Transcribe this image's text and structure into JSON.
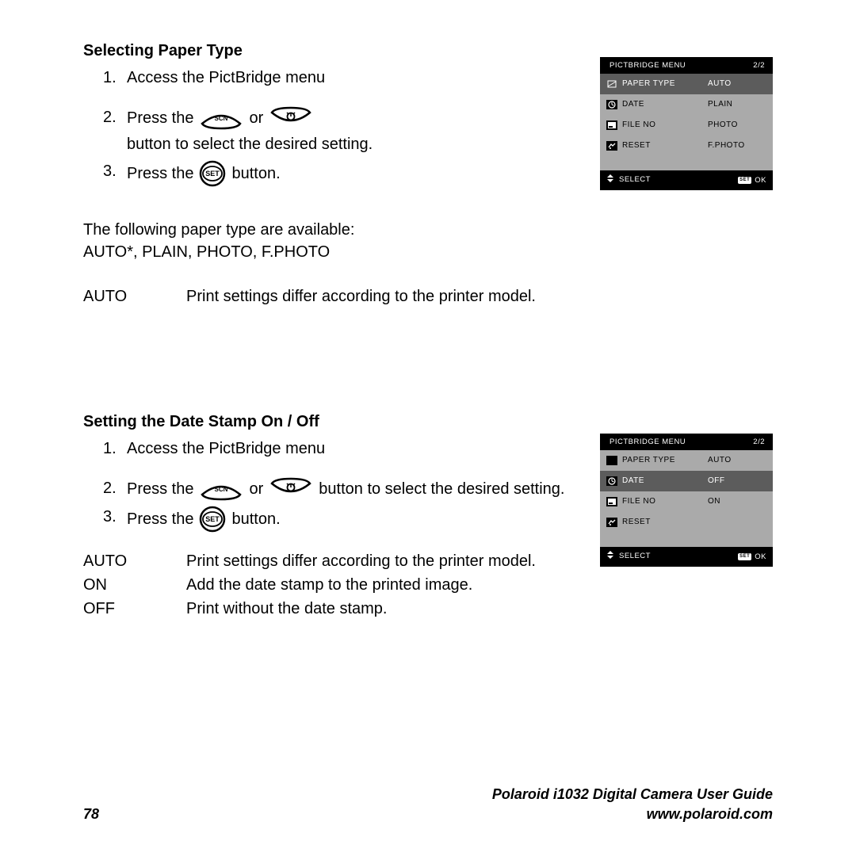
{
  "colors": {
    "page_bg": "#ffffff",
    "text": "#000000",
    "lcd_black": "#000000",
    "lcd_grey": "#aaaaaa",
    "lcd_sel": "#5c5c5c",
    "lcd_white": "#ffffff"
  },
  "section1": {
    "title": "Selecting Paper Type",
    "steps": {
      "s1": {
        "num": "1.",
        "text": "Access the PictBridge menu"
      },
      "s2": {
        "num": "2.",
        "pre": "Press the",
        "mid": "or",
        "post": "button to select the desired setting."
      },
      "s3": {
        "num": "3.",
        "pre": "Press the",
        "post": "button."
      }
    },
    "available_intro": "The following paper type are available:",
    "available_list": "AUTO*, PLAIN, PHOTO, F.PHOTO",
    "def": {
      "term": "AUTO",
      "text": "Print settings differ according to the printer model."
    }
  },
  "section2": {
    "title": "Setting the Date Stamp On / Off",
    "steps": {
      "s1": {
        "num": "1.",
        "text": "Access the PictBridge menu"
      },
      "s2": {
        "num": "2.",
        "pre": "Press the",
        "mid": "or",
        "post": "button to select the desired setting."
      },
      "s3": {
        "num": "3.",
        "pre": "Press the",
        "post": "button."
      }
    },
    "defs": {
      "d1": {
        "term": "AUTO",
        "text": "Print settings differ according to the printer model."
      },
      "d2": {
        "term": "ON",
        "text": "Add the date stamp to the printed image."
      },
      "d3": {
        "term": "OFF",
        "text": "Print without the date stamp."
      }
    }
  },
  "lcd1": {
    "header_title": "PICTBRIDGE MENU",
    "header_page": "2/2",
    "rows": [
      {
        "label": "PAPER TYPE",
        "value": "AUTO",
        "left_sel": true,
        "right_sel": true
      },
      {
        "label": "DATE",
        "value": "PLAIN",
        "left_sel": false,
        "right_sel": false
      },
      {
        "label": "FILE NO",
        "value": "PHOTO",
        "left_sel": false,
        "right_sel": false
      },
      {
        "label": "RESET",
        "value": "F.PHOTO",
        "left_sel": false,
        "right_sel": false
      }
    ],
    "footer_select": "SELECT",
    "footer_ok": "OK"
  },
  "lcd2": {
    "header_title": "PICTBRIDGE MENU",
    "header_page": "2/2",
    "rows": [
      {
        "label": "PAPER TYPE",
        "value": "AUTO",
        "left_sel": false,
        "right_sel": false
      },
      {
        "label": "DATE",
        "value": "OFF",
        "left_sel": true,
        "right_sel": true
      },
      {
        "label": "FILE NO",
        "value": "ON",
        "left_sel": false,
        "right_sel": false
      },
      {
        "label": "RESET",
        "value": "",
        "left_sel": false,
        "right_sel": false
      }
    ],
    "footer_select": "SELECT",
    "footer_ok": "OK"
  },
  "icons": {
    "menu": [
      "paper-icon",
      "date-icon",
      "fileno-icon",
      "reset-icon"
    ]
  },
  "footer": {
    "page_num": "78",
    "guide": "Polaroid i1032 Digital Camera User Guide",
    "url": "www.polaroid.com"
  }
}
